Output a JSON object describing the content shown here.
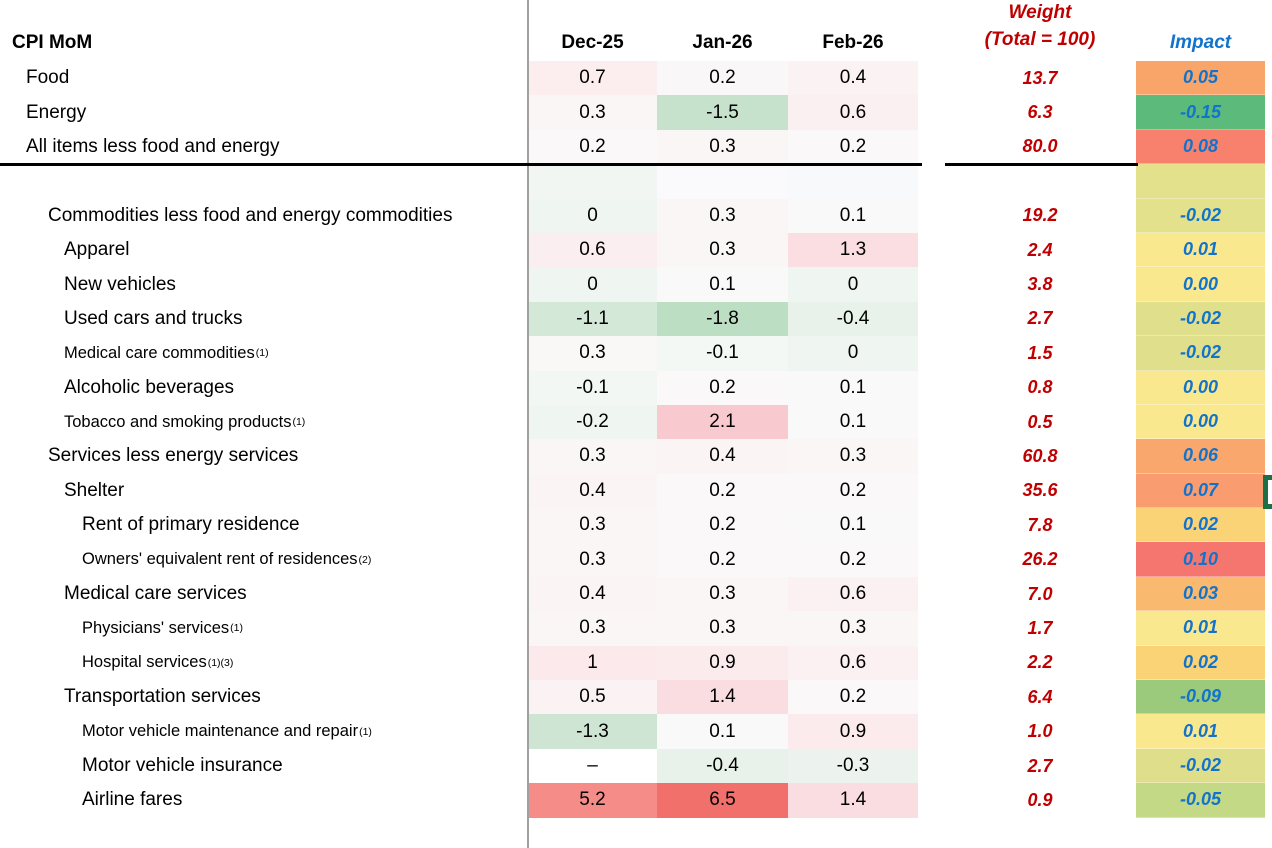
{
  "header": {
    "title": "CPI MoM",
    "months": [
      "Dec-25",
      "Jan-26",
      "Feb-26"
    ],
    "weight_line1": "Weight",
    "weight_line2": "(Total = 100)",
    "impact": "Impact"
  },
  "colors": {
    "weight_text": "#C00000",
    "impact_text": "#1273CC",
    "divider": "#A0A0A0",
    "rule": "#000000",
    "bracket_green": "#1E7044"
  },
  "rows": [
    {
      "label": "Food",
      "sup": "",
      "indent": 1,
      "small": false,
      "values": [
        "0.7",
        "0.2",
        "0.4"
      ],
      "value_colors": [
        "#FCEDEF",
        "#F9F7F8",
        "#FBF2F4"
      ],
      "weight": "13.7",
      "impact": "0.05",
      "impact_color": "#F9A468"
    },
    {
      "label": "Energy",
      "sup": "",
      "indent": 1,
      "small": false,
      "values": [
        "0.3",
        "-1.5",
        "0.6"
      ],
      "value_colors": [
        "#FAF6F6",
        "#C7E2CC",
        "#FBF0F1"
      ],
      "weight": "6.3",
      "impact": "-0.15",
      "impact_color": "#5CBB7B"
    },
    {
      "label": "All items less food and energy",
      "sup": "",
      "indent": 1,
      "small": false,
      "values": [
        "0.2",
        "0.3",
        "0.2"
      ],
      "value_colors": [
        "#FAF8F8",
        "#FAF6F6",
        "#FAF8F8"
      ],
      "weight": "80.0",
      "impact": "0.08",
      "impact_color": "#F8816D"
    },
    {
      "label": "",
      "sup": "",
      "indent": 1,
      "small": false,
      "values": [
        "",
        "",
        ""
      ],
      "value_colors": [
        "#F1F6F2",
        "#FAFAFC",
        "#F7F9FA"
      ],
      "weight": "",
      "impact": "",
      "impact_color": "#E3E18C"
    },
    {
      "label": "Commodities less food and energy commodities",
      "sup": "",
      "indent": 2,
      "small": false,
      "values": [
        "0",
        "0.3",
        "0.1"
      ],
      "value_colors": [
        "#EFF5F0",
        "#FAF6F6",
        "#F9F9F9"
      ],
      "weight": "19.2",
      "impact": "-0.02",
      "impact_color": "#E3E18C"
    },
    {
      "label": "Apparel",
      "sup": "",
      "indent": 3,
      "small": false,
      "values": [
        "0.6",
        "0.3",
        "1.3"
      ],
      "value_colors": [
        "#FBEEF0",
        "#FAF6F6",
        "#FADEE2"
      ],
      "weight": "2.4",
      "impact": "0.01",
      "impact_color": "#FAE88F"
    },
    {
      "label": "New vehicles",
      "sup": "",
      "indent": 3,
      "small": false,
      "values": [
        "0",
        "0.1",
        "0"
      ],
      "value_colors": [
        "#EFF5F0",
        "#F9F9F9",
        "#EFF5F0"
      ],
      "weight": "3.8",
      "impact": "0.00",
      "impact_color": "#FAE88F"
    },
    {
      "label": "Used cars and trucks",
      "sup": "",
      "indent": 3,
      "small": false,
      "values": [
        "-1.1",
        "-1.8",
        "-0.4"
      ],
      "value_colors": [
        "#D4E8D8",
        "#BCDEC3",
        "#E9F1EB"
      ],
      "weight": "2.7",
      "impact": "-0.02",
      "impact_color": "#E0DF8C"
    },
    {
      "label": "Medical care commodities",
      "sup": "(1)",
      "indent": 3,
      "small": true,
      "values": [
        "0.3",
        "-0.1",
        "0"
      ],
      "value_colors": [
        "#FAF7F7",
        "#F4F8F5",
        "#EFF5F0"
      ],
      "weight": "1.5",
      "impact": "-0.02",
      "impact_color": "#E0DF8C"
    },
    {
      "label": "Alcoholic beverages",
      "sup": "",
      "indent": 3,
      "small": false,
      "values": [
        "-0.1",
        "0.2",
        "0.1"
      ],
      "value_colors": [
        "#F2F7F3",
        "#FAF8F8",
        "#F9F9F9"
      ],
      "weight": "0.8",
      "impact": "0.00",
      "impact_color": "#FAE88F"
    },
    {
      "label": "Tobacco and smoking products",
      "sup": "(1)",
      "indent": 3,
      "small": true,
      "values": [
        "-0.2",
        "2.1",
        "0.1"
      ],
      "value_colors": [
        "#EFF5F0",
        "#F8CAD0",
        "#F9F9F9"
      ],
      "weight": "0.5",
      "impact": "0.00",
      "impact_color": "#FAE88F"
    },
    {
      "label": "Services less energy services",
      "sup": "",
      "indent": 2,
      "small": false,
      "values": [
        "0.3",
        "0.4",
        "0.3"
      ],
      "value_colors": [
        "#FAF6F6",
        "#FBF4F5",
        "#FAF6F6"
      ],
      "weight": "60.8",
      "impact": "0.06",
      "impact_color": "#F9A76C"
    },
    {
      "label": "Shelter",
      "sup": "",
      "indent": 3,
      "small": false,
      "values": [
        "0.4",
        "0.2",
        "0.2"
      ],
      "value_colors": [
        "#FBF4F5",
        "#FAF8F8",
        "#FAF8F8"
      ],
      "weight": "35.6",
      "impact": "0.07",
      "impact_color": "#F99C6F"
    },
    {
      "label": "Rent of primary residence",
      "sup": "",
      "indent": 4,
      "small": false,
      "values": [
        "0.3",
        "0.2",
        "0.1"
      ],
      "value_colors": [
        "#FAF6F6",
        "#FAF8F8",
        "#F9F9F9"
      ],
      "weight": "7.8",
      "impact": "0.02",
      "impact_color": "#FAD377"
    },
    {
      "label": "Owners' equivalent rent of residences",
      "sup": "(2)",
      "indent": 4,
      "small": true,
      "values": [
        "0.3",
        "0.2",
        "0.2"
      ],
      "value_colors": [
        "#FAF6F6",
        "#FAF8F8",
        "#FAF8F8"
      ],
      "weight": "26.2",
      "impact": "0.10",
      "impact_color": "#F5766F"
    },
    {
      "label": "Medical care services",
      "sup": "",
      "indent": 3,
      "small": false,
      "values": [
        "0.4",
        "0.3",
        "0.6"
      ],
      "value_colors": [
        "#FBF4F5",
        "#FAF6F6",
        "#FBF0F2"
      ],
      "weight": "7.0",
      "impact": "0.03",
      "impact_color": "#F9BA70"
    },
    {
      "label": "Physicians' services",
      "sup": "(1)",
      "indent": 4,
      "small": true,
      "values": [
        "0.3",
        "0.3",
        "0.3"
      ],
      "value_colors": [
        "#FAF6F6",
        "#FAF6F6",
        "#FAF6F6"
      ],
      "weight": "1.7",
      "impact": "0.01",
      "impact_color": "#FAE88F"
    },
    {
      "label": "Hospital services",
      "sup": "(1)(3)",
      "indent": 4,
      "small": true,
      "values": [
        "1",
        "0.9",
        "0.6"
      ],
      "value_colors": [
        "#FBE9EB",
        "#FBEBED",
        "#FBF0F2"
      ],
      "weight": "2.2",
      "impact": "0.02",
      "impact_color": "#FAD377"
    },
    {
      "label": "Transportation services",
      "sup": "",
      "indent": 3,
      "small": false,
      "values": [
        "0.5",
        "1.4",
        "0.2"
      ],
      "value_colors": [
        "#FBF2F4",
        "#FADDE1",
        "#FAF8F8"
      ],
      "weight": "6.4",
      "impact": "-0.09",
      "impact_color": "#9BCA7D"
    },
    {
      "label": "Motor vehicle maintenance and repair",
      "sup": "(1)",
      "indent": 4,
      "small": true,
      "values": [
        "-1.3",
        "0.1",
        "0.9"
      ],
      "value_colors": [
        "#CFE5D4",
        "#F9F9F9",
        "#FBEBED"
      ],
      "weight": "1.0",
      "impact": "0.01",
      "impact_color": "#FAE88F"
    },
    {
      "label": "Motor vehicle insurance",
      "sup": "",
      "indent": 4,
      "small": false,
      "values": [
        "–",
        "-0.4",
        "-0.3"
      ],
      "value_colors": [
        "#FFFFFF",
        "#E9F1EB",
        "#ECF3EE"
      ],
      "weight": "2.7",
      "impact": "-0.02",
      "impact_color": "#DFDE8B"
    },
    {
      "label": "Airline fares",
      "sup": "",
      "indent": 4,
      "small": false,
      "values": [
        "5.2",
        "6.5",
        "1.4"
      ],
      "value_colors": [
        "#F58C88",
        "#F2706B",
        "#FADDE1"
      ],
      "weight": "0.9",
      "impact": "-0.05",
      "impact_color": "#C3D985"
    }
  ]
}
